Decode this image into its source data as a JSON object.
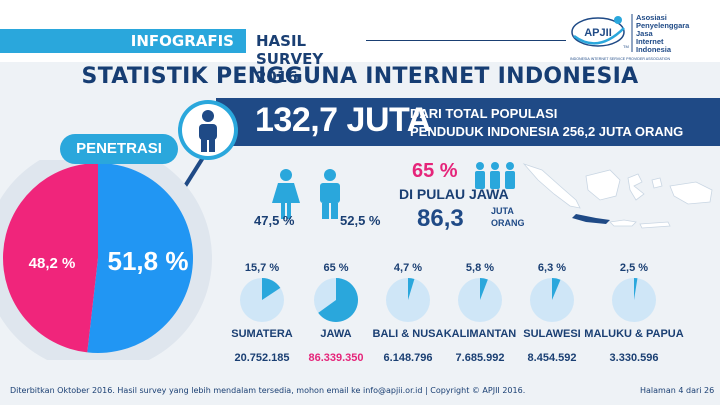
{
  "header": {
    "tag_infografis": "INFOGRAFIS",
    "tag_survey": "HASIL SURVEY 2016",
    "logo": {
      "acronym": "APJII",
      "trademark": "TM",
      "name_lines": [
        "Asosiasi",
        "Penyelenggara",
        "Jasa",
        "Internet",
        "Indonesia"
      ],
      "tagline": "INDONESIA INTERNET SERVICE PROVIDER ASSOCIATION"
    }
  },
  "title": "STATISTIK PENGGUNA INTERNET INDONESIA",
  "banner": {
    "number": "132,7 JUTA",
    "line1": "DARI TOTAL POPULASI",
    "line2": "PENDUDUK INDONESIA 256,2 JUTA ORANG"
  },
  "penetrasi": {
    "label": "PENETRASI",
    "pct_users": "51,8 %",
    "pct_non_users": "48,2 %",
    "users_fraction": 0.518,
    "colors": {
      "users": "#2196f3",
      "non_users": "#f0257b"
    }
  },
  "gender": {
    "female": "47,5 %",
    "male": "52,5 %"
  },
  "jawa": {
    "pct": "65 %",
    "label": "DI PULAU JAWA",
    "count": "86,3",
    "unit1": "JUTA",
    "unit2": "ORANG"
  },
  "regions": [
    {
      "name": "SUMATERA",
      "pct": "15,7 %",
      "fraction": 0.157,
      "users": "20.752.185",
      "highlight": false
    },
    {
      "name": "JAWA",
      "pct": "65 %",
      "fraction": 0.65,
      "users": "86.339.350",
      "highlight": true
    },
    {
      "name": "BALI & NUSA",
      "pct": "4,7 %",
      "fraction": 0.047,
      "users": "6.148.796",
      "highlight": false
    },
    {
      "name": "KALIMANTAN",
      "pct": "5,8 %",
      "fraction": 0.058,
      "users": "7.685.992",
      "highlight": false
    },
    {
      "name": "SULAWESI",
      "pct": "6,3 %",
      "fraction": 0.063,
      "users": "8.454.592",
      "highlight": false
    },
    {
      "name": "MALUKU & PAPUA",
      "pct": "2,5 %",
      "fraction": 0.025,
      "users": "3.330.596",
      "highlight": false
    }
  ],
  "footer": {
    "text": "Diterbitkan Oktober 2016. Hasil survey yang lebih mendalam tersedia, mohon email ke info@apjii.or.id  |  Copyright © APJII 2016.",
    "page": "Halaman 4 dari 26"
  }
}
